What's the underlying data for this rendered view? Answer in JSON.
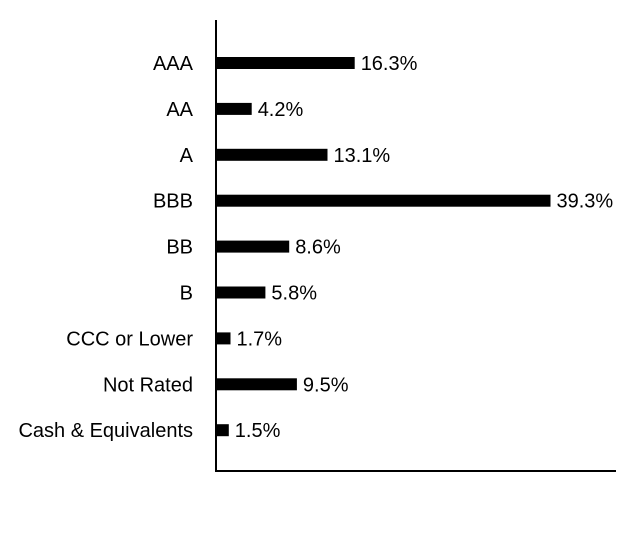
{
  "chart_data": {
    "type": "bar",
    "orientation": "horizontal",
    "categories": [
      "AAA",
      "AA",
      "A",
      "BBB",
      "BB",
      "B",
      "CCC or Lower",
      "Not Rated",
      "Cash & Equivalents"
    ],
    "values": [
      16.3,
      4.2,
      13.1,
      39.3,
      8.6,
      5.8,
      1.7,
      9.5,
      1.5
    ],
    "value_labels": [
      "16.3%",
      "4.2%",
      "13.1%",
      "39.3%",
      "8.6%",
      "5.8%",
      "1.7%",
      "9.5%",
      "1.5%"
    ],
    "xlim": [
      0,
      47
    ],
    "grid": false,
    "legend": "none",
    "colors": {
      "bar": "#000000",
      "axis": "#000000",
      "text": "#000000"
    }
  }
}
